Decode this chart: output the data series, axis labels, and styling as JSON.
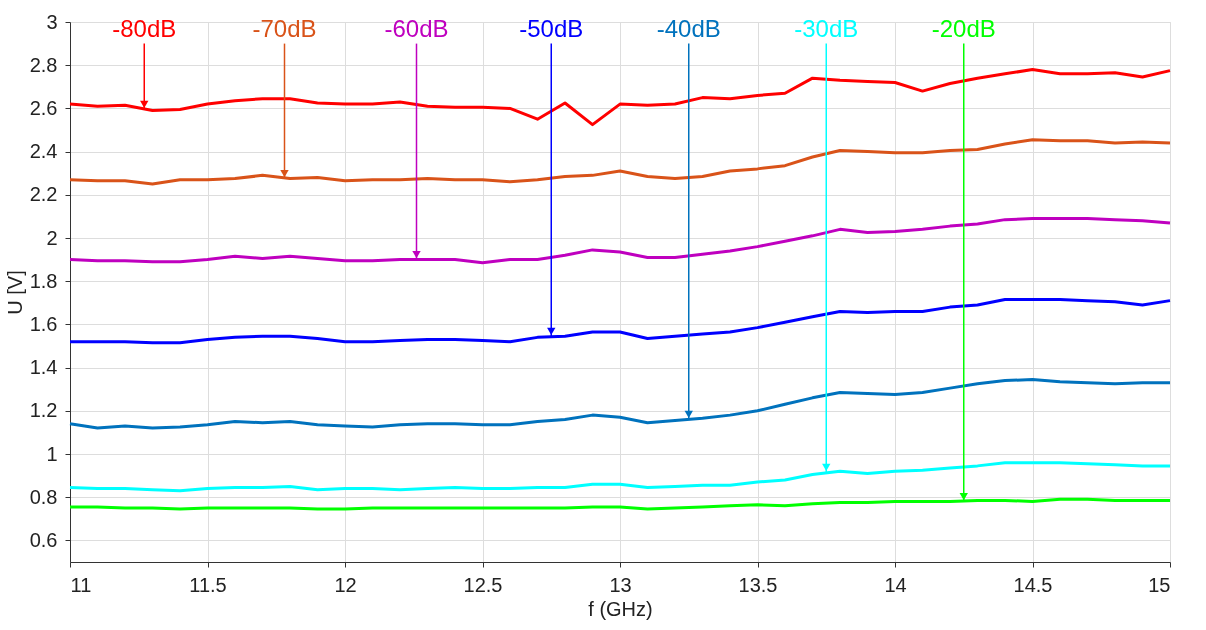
{
  "chart_data": {
    "type": "line",
    "xlabel": "f (GHz)",
    "ylabel": "U [V]",
    "x": [
      11,
      11.1,
      11.2,
      11.3,
      11.4,
      11.5,
      11.6,
      11.7,
      11.8,
      11.9,
      12,
      12.1,
      12.2,
      12.3,
      12.4,
      12.5,
      12.6,
      12.7,
      12.8,
      12.9,
      13,
      13.1,
      13.2,
      13.3,
      13.4,
      13.5,
      13.6,
      13.7,
      13.8,
      13.9,
      14,
      14.1,
      14.2,
      14.3,
      14.4,
      14.5,
      14.6,
      14.7,
      14.8,
      14.9,
      15
    ],
    "xlim": [
      11,
      15
    ],
    "xticks": [
      11,
      11.5,
      12,
      12.5,
      13,
      13.5,
      14,
      14.5,
      15
    ],
    "ylim": [
      0.5,
      3
    ],
    "yticks": [
      0.6,
      0.8,
      1,
      1.2,
      1.4,
      1.6,
      1.8,
      2,
      2.2,
      2.4,
      2.6,
      2.8,
      3
    ],
    "grid": true,
    "marker": "none",
    "line_style": "solid",
    "series": [
      {
        "color": "#ff0000",
        "values": [
          2.62,
          2.61,
          2.615,
          2.59,
          2.595,
          2.62,
          2.635,
          2.645,
          2.645,
          2.625,
          2.62,
          2.62,
          2.63,
          2.61,
          2.605,
          2.605,
          2.6,
          2.55,
          2.625,
          2.525,
          2.62,
          2.615,
          2.62,
          2.65,
          2.645,
          2.66,
          2.67,
          2.74,
          2.73,
          2.725,
          2.72,
          2.68,
          2.715,
          2.74,
          2.76,
          2.78,
          2.76,
          2.76,
          2.765,
          2.745,
          2.775
        ]
      },
      {
        "color": "#d95319",
        "values": [
          2.27,
          2.265,
          2.265,
          2.25,
          2.27,
          2.27,
          2.275,
          2.29,
          2.275,
          2.28,
          2.265,
          2.27,
          2.27,
          2.275,
          2.27,
          2.27,
          2.26,
          2.27,
          2.285,
          2.29,
          2.31,
          2.285,
          2.275,
          2.285,
          2.31,
          2.32,
          2.335,
          2.375,
          2.405,
          2.4,
          2.395,
          2.395,
          2.405,
          2.41,
          2.435,
          2.455,
          2.45,
          2.45,
          2.44,
          2.445,
          2.44
        ]
      },
      {
        "color": "#bf00bf",
        "values": [
          1.9,
          1.895,
          1.895,
          1.89,
          1.89,
          1.9,
          1.915,
          1.905,
          1.915,
          1.905,
          1.895,
          1.895,
          1.9,
          1.9,
          1.9,
          1.885,
          1.9,
          1.9,
          1.92,
          1.945,
          1.935,
          1.91,
          1.91,
          1.925,
          1.94,
          1.96,
          1.985,
          2.01,
          2.04,
          2.025,
          2.03,
          2.04,
          2.055,
          2.065,
          2.085,
          2.09,
          2.09,
          2.09,
          2.085,
          2.08,
          2.07
        ]
      },
      {
        "color": "#0000ff",
        "values": [
          1.52,
          1.52,
          1.52,
          1.515,
          1.515,
          1.53,
          1.54,
          1.545,
          1.545,
          1.535,
          1.52,
          1.52,
          1.525,
          1.53,
          1.53,
          1.525,
          1.52,
          1.54,
          1.545,
          1.565,
          1.565,
          1.535,
          1.545,
          1.555,
          1.565,
          1.585,
          1.61,
          1.635,
          1.66,
          1.655,
          1.66,
          1.66,
          1.68,
          1.69,
          1.715,
          1.715,
          1.715,
          1.71,
          1.705,
          1.69,
          1.71
        ]
      },
      {
        "color": "#0072bd",
        "values": [
          1.14,
          1.12,
          1.13,
          1.12,
          1.125,
          1.135,
          1.15,
          1.145,
          1.15,
          1.135,
          1.13,
          1.125,
          1.135,
          1.14,
          1.14,
          1.135,
          1.135,
          1.15,
          1.16,
          1.18,
          1.17,
          1.145,
          1.155,
          1.165,
          1.18,
          1.2,
          1.23,
          1.26,
          1.285,
          1.28,
          1.275,
          1.285,
          1.305,
          1.325,
          1.34,
          1.345,
          1.335,
          1.33,
          1.325,
          1.33,
          1.33
        ]
      },
      {
        "color": "#00ffff",
        "values": [
          0.845,
          0.84,
          0.84,
          0.835,
          0.83,
          0.84,
          0.845,
          0.845,
          0.85,
          0.835,
          0.84,
          0.84,
          0.835,
          0.84,
          0.845,
          0.84,
          0.84,
          0.845,
          0.845,
          0.86,
          0.86,
          0.845,
          0.85,
          0.855,
          0.855,
          0.87,
          0.88,
          0.905,
          0.92,
          0.91,
          0.92,
          0.925,
          0.935,
          0.945,
          0.96,
          0.96,
          0.96,
          0.955,
          0.95,
          0.945,
          0.945
        ]
      },
      {
        "color": "#00ff00",
        "values": [
          0.755,
          0.755,
          0.75,
          0.75,
          0.745,
          0.75,
          0.75,
          0.75,
          0.75,
          0.745,
          0.745,
          0.75,
          0.75,
          0.75,
          0.75,
          0.75,
          0.75,
          0.75,
          0.75,
          0.755,
          0.755,
          0.745,
          0.75,
          0.755,
          0.76,
          0.765,
          0.76,
          0.77,
          0.775,
          0.775,
          0.78,
          0.78,
          0.78,
          0.785,
          0.785,
          0.78,
          0.79,
          0.79,
          0.785,
          0.785,
          0.785
        ]
      }
    ],
    "annotations": [
      {
        "text": "-80dB",
        "x": 11.27,
        "y": 2.595
      },
      {
        "text": "-70dB",
        "x": 11.78,
        "y": 2.275
      },
      {
        "text": "-60dB",
        "x": 12.26,
        "y": 1.9
      },
      {
        "text": "-50dB",
        "x": 12.75,
        "y": 1.545
      },
      {
        "text": "-40dB",
        "x": 13.25,
        "y": 1.16
      },
      {
        "text": "-30dB",
        "x": 13.75,
        "y": 0.915
      },
      {
        "text": "-20dB",
        "x": 14.25,
        "y": 0.78
      }
    ]
  }
}
